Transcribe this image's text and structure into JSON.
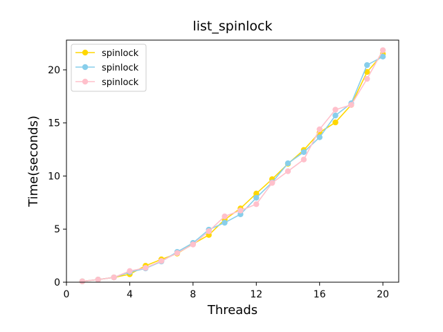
{
  "chart_data": {
    "type": "line",
    "title": "list_spinlock",
    "xlabel": "Threads",
    "ylabel": "Time(seconds)",
    "xlim": [
      0,
      21
    ],
    "ylim": [
      0,
      22.8
    ],
    "xticks": [
      0,
      4,
      8,
      12,
      16,
      20
    ],
    "yticks": [
      0,
      5,
      10,
      15,
      20
    ],
    "grid": false,
    "legend": "top-left",
    "x": [
      1,
      2,
      3,
      4,
      5,
      6,
      7,
      8,
      9,
      10,
      11,
      12,
      13,
      14,
      15,
      16,
      17,
      18,
      19,
      20
    ],
    "series": [
      {
        "name": "spinlock",
        "color": "#FFD700",
        "values": [
          0.08,
          0.25,
          0.45,
          0.75,
          1.55,
          2.15,
          2.7,
          3.6,
          4.45,
          5.9,
          6.95,
          8.35,
          9.7,
          11.15,
          12.45,
          14.1,
          15.05,
          16.7,
          19.8,
          21.5
        ]
      },
      {
        "name": "spinlock",
        "color": "#87CEEB",
        "values": [
          0.08,
          0.25,
          0.45,
          0.95,
          1.3,
          1.95,
          2.85,
          3.7,
          4.95,
          5.6,
          6.4,
          7.95,
          9.4,
          11.2,
          12.25,
          13.65,
          15.7,
          16.85,
          20.45,
          21.25
        ]
      },
      {
        "name": "spinlock",
        "color": "#FFC0CB",
        "values": [
          0.08,
          0.25,
          0.45,
          1.05,
          1.35,
          2.0,
          2.75,
          3.55,
          4.8,
          6.2,
          6.75,
          7.35,
          9.35,
          10.45,
          11.55,
          14.4,
          16.25,
          16.7,
          19.15,
          21.85
        ]
      }
    ]
  }
}
